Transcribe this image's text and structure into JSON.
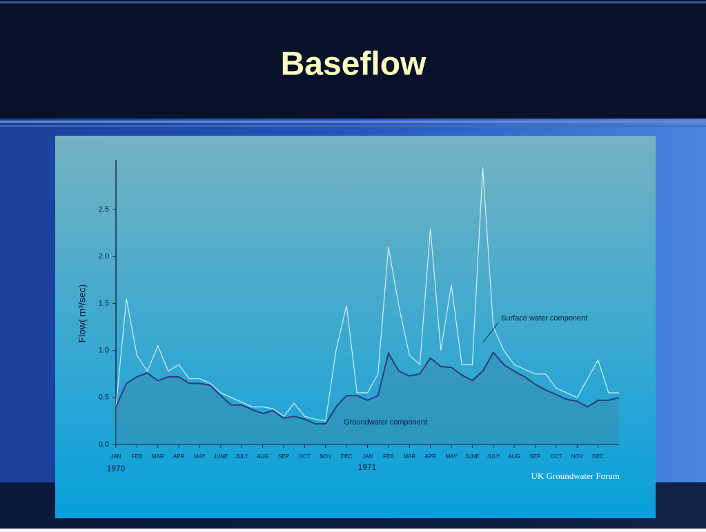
{
  "title": "Baseflow",
  "chart_data": {
    "type": "line",
    "y_label": "Flow( m³/sec)",
    "x": [
      0,
      0.5,
      1,
      1.5,
      2,
      2.5,
      3,
      3.5,
      4,
      4.5,
      5,
      5.5,
      6,
      6.5,
      7,
      7.5,
      8,
      8.5,
      9,
      9.5,
      10,
      10.5,
      11,
      11.5,
      12,
      12.5,
      13,
      13.5,
      14,
      14.5,
      15,
      15.5,
      16,
      16.5,
      17,
      17.5,
      18,
      18.5,
      19,
      19.5,
      20,
      20.5,
      21,
      21.5,
      22,
      22.5,
      23,
      23.5,
      24
    ],
    "series": [
      {
        "name": "Surface water component",
        "color": "#d8eef5",
        "values": [
          0.4,
          1.55,
          0.95,
          0.78,
          1.05,
          0.78,
          0.85,
          0.7,
          0.7,
          0.65,
          0.55,
          0.5,
          0.45,
          0.4,
          0.4,
          0.38,
          0.3,
          0.44,
          0.3,
          0.27,
          0.25,
          1.0,
          1.48,
          0.55,
          0.55,
          0.75,
          2.1,
          1.47,
          0.95,
          0.85,
          2.3,
          1.0,
          1.7,
          0.85,
          0.85,
          2.95,
          1.25,
          1.0,
          0.85,
          0.8,
          0.75,
          0.75,
          0.6,
          0.55,
          0.5,
          0.7,
          0.9,
          0.55,
          0.55
        ]
      },
      {
        "name": "Groundwater component",
        "color": "#2a3a7a",
        "values": [
          0.4,
          0.65,
          0.72,
          0.76,
          0.68,
          0.72,
          0.72,
          0.65,
          0.65,
          0.63,
          0.52,
          0.42,
          0.42,
          0.37,
          0.33,
          0.36,
          0.28,
          0.3,
          0.27,
          0.22,
          0.22,
          0.4,
          0.52,
          0.52,
          0.47,
          0.52,
          0.97,
          0.78,
          0.73,
          0.75,
          0.92,
          0.83,
          0.82,
          0.74,
          0.68,
          0.78,
          0.98,
          0.85,
          0.78,
          0.72,
          0.64,
          0.58,
          0.53,
          0.48,
          0.46,
          0.4,
          0.47,
          0.47,
          0.5
        ]
      }
    ],
    "xlim": [
      0,
      24
    ],
    "xticks": [
      {
        "value": 0,
        "label": "JAN"
      },
      {
        "value": 1,
        "label": "FEB"
      },
      {
        "value": 2,
        "label": "MAR"
      },
      {
        "value": 3,
        "label": "APR"
      },
      {
        "value": 4,
        "label": "MAY"
      },
      {
        "value": 5,
        "label": "JUNE"
      },
      {
        "value": 6,
        "label": "JULY"
      },
      {
        "value": 7,
        "label": "AUG"
      },
      {
        "value": 8,
        "label": "SEP"
      },
      {
        "value": 9,
        "label": "OCT"
      },
      {
        "value": 10,
        "label": "NOV"
      },
      {
        "value": 11,
        "label": "DEC"
      },
      {
        "value": 12,
        "label": "JAN"
      },
      {
        "value": 13,
        "label": "FEB"
      },
      {
        "value": 14,
        "label": "MAR"
      },
      {
        "value": 15,
        "label": "APR"
      },
      {
        "value": 16,
        "label": "MAY"
      },
      {
        "value": 17,
        "label": "JUNE"
      },
      {
        "value": 18,
        "label": "JULY"
      },
      {
        "value": 19,
        "label": "AUG"
      },
      {
        "value": 20,
        "label": "SEP"
      },
      {
        "value": 21,
        "label": "OCT"
      },
      {
        "value": 22,
        "label": "NOV"
      },
      {
        "value": 23,
        "label": "DEC"
      }
    ],
    "ylim": [
      0,
      3
    ],
    "yticks": [
      {
        "value": 0,
        "label": "0.0"
      },
      0.5,
      {
        "value": 1,
        "label": "1.0"
      },
      1.5,
      {
        "value": 2,
        "label": "2.0"
      },
      2.5
    ],
    "year_labels": [
      "1970",
      "1971"
    ],
    "credit": "UK Groundwater Forum"
  }
}
